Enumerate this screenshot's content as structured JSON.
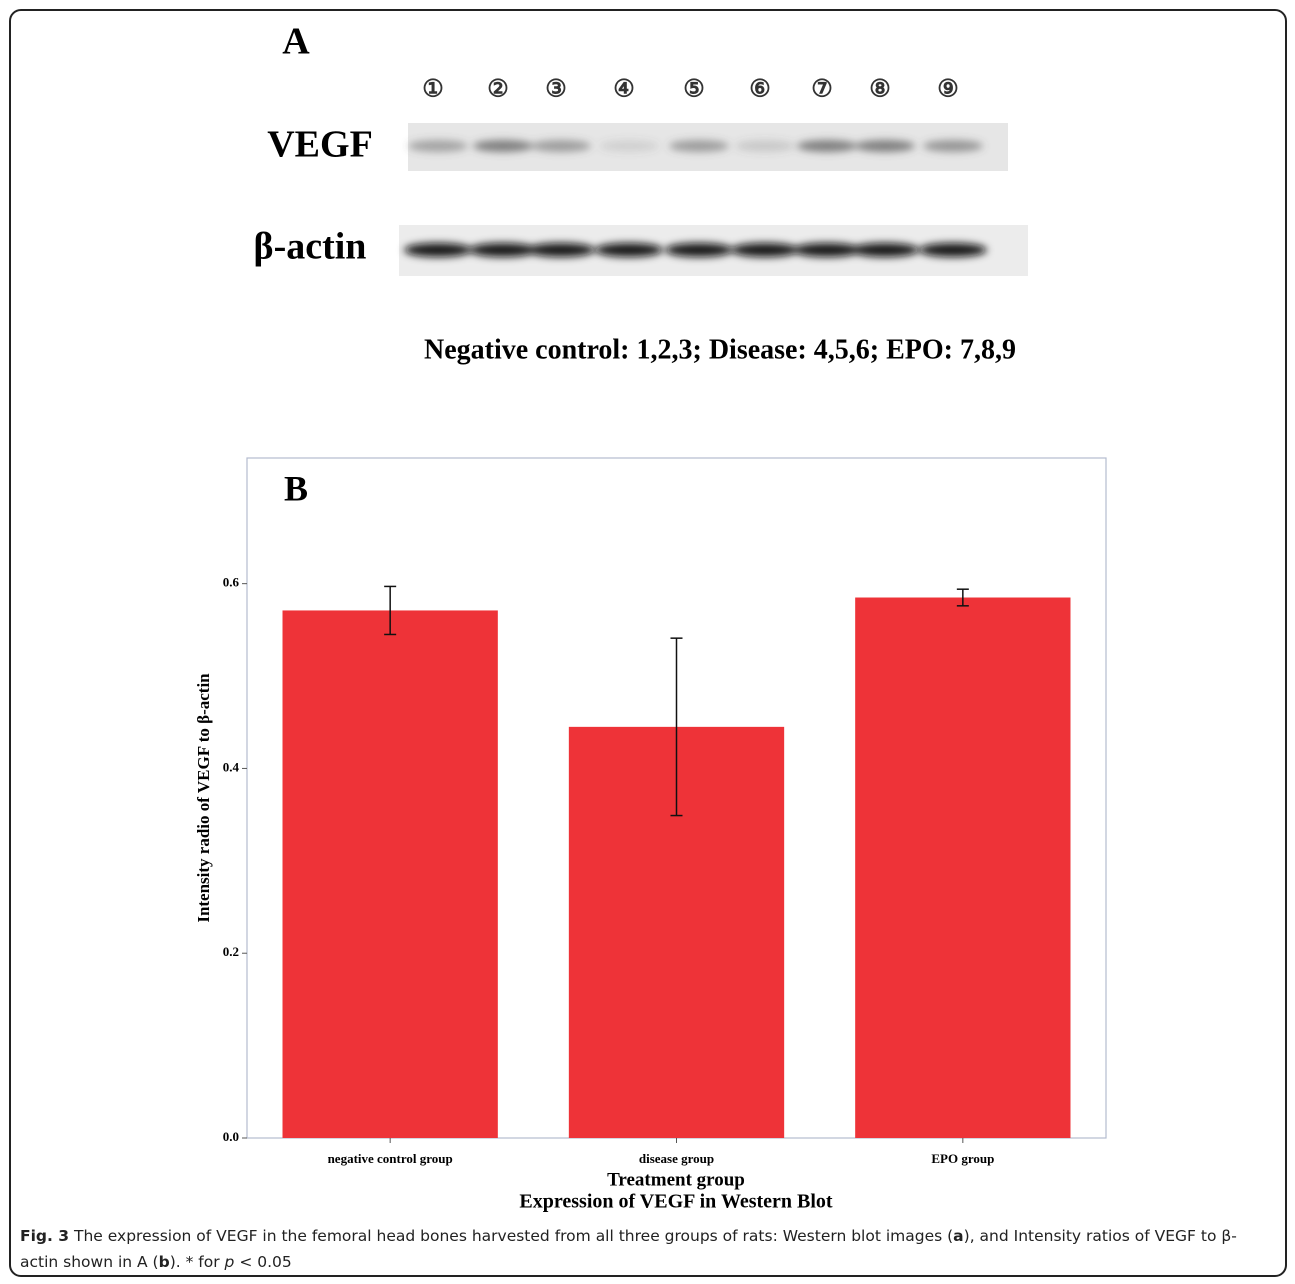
{
  "panel_a": {
    "label": "A",
    "lanes": [
      "①",
      "②",
      "③",
      "④",
      "⑤",
      "⑥",
      "⑦",
      "⑧",
      "⑨"
    ],
    "rows": [
      "VEGF",
      "β-actin"
    ],
    "legend": "Negative control: 1,2,3; Disease: 4,5,6; EPO: 7,8,9"
  },
  "chart_data": {
    "type": "bar",
    "panel_label": "B",
    "title": "Expression of VEGF in Western Blot",
    "x_label": "Treatment group",
    "y_label": "Intensity radio of VEGF to β-actin",
    "categories": [
      "negative control group",
      "disease group",
      "EPO group"
    ],
    "values": [
      0.571,
      0.445,
      0.585
    ],
    "errors": [
      0.026,
      0.096,
      0.009
    ],
    "color": "#ee3338",
    "ylim": [
      0,
      0.736
    ],
    "yticks": [
      {
        "value": 0,
        "label": "0.0"
      },
      0.2,
      0.4,
      0.6
    ],
    "grid": false
  },
  "caption": {
    "parts": [
      "Fig. 3",
      "The expression of VEGF in the femoral head bones harvested from all three groups of rats: Western blot images (",
      "a",
      "), and Intensity ratios of VEGF to β-actin shown in A (",
      "b",
      "). * for",
      "p",
      "< 0.05"
    ]
  }
}
